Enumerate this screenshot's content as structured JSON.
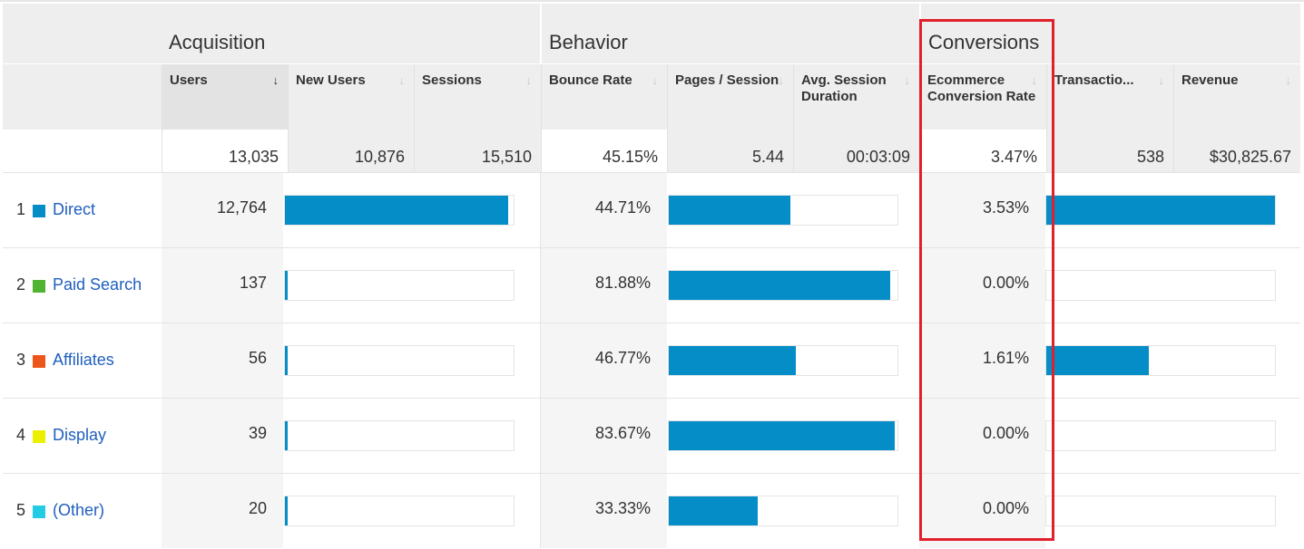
{
  "groups": {
    "acquisition": "Acquisition",
    "behavior": "Behavior",
    "conversions": "Conversions"
  },
  "columns": [
    "Users",
    "New Users",
    "Sessions",
    "Bounce Rate",
    "Pages / Session",
    "Avg. Session Duration",
    "Ecommerce Conversion Rate",
    "Transactio...",
    "Revenue"
  ],
  "sort_icon": "arrow-down-icon",
  "totals": [
    "13,035",
    "10,876",
    "15,510",
    "45.15%",
    "5.44",
    "00:03:09",
    "3.47%",
    "538",
    "$30,825.67"
  ],
  "rows": [
    {
      "rank": "1",
      "label": "Direct",
      "color": "#058dc7",
      "users": "12,764",
      "users_pct": 97.6,
      "bounce": "44.71%",
      "bounce_bar_pct": 53,
      "ecr": "3.53%",
      "trans_bar_pct": 100
    },
    {
      "rank": "2",
      "label": "Paid Search",
      "color": "#50b432",
      "users": "137",
      "users_pct": 1,
      "bounce": "81.88%",
      "bounce_bar_pct": 97,
      "ecr": "0.00%",
      "trans_bar_pct": 0
    },
    {
      "rank": "3",
      "label": "Affiliates",
      "color": "#ed561b",
      "users": "56",
      "users_pct": 0.8,
      "bounce": "46.77%",
      "bounce_bar_pct": 55.5,
      "ecr": "1.61%",
      "trans_bar_pct": 45
    },
    {
      "rank": "4",
      "label": "Display",
      "color": "#edef00",
      "users": "39",
      "users_pct": 0.6,
      "bounce": "83.67%",
      "bounce_bar_pct": 99,
      "ecr": "0.00%",
      "trans_bar_pct": 0
    },
    {
      "rank": "5",
      "label": "(Other)",
      "color": "#24cbe5",
      "users": "20",
      "users_pct": 0.4,
      "bounce": "33.33%",
      "bounce_bar_pct": 39,
      "ecr": "0.00%",
      "trans_bar_pct": 0
    }
  ],
  "highlight_color": "#e0202a"
}
